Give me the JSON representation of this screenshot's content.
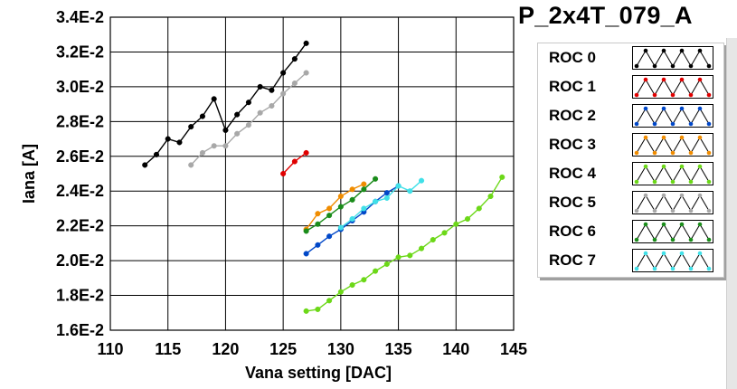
{
  "chart_data": {
    "type": "line",
    "title": "P_2x4T_079_A",
    "xlabel": "Vana setting [DAC]",
    "ylabel": "Iana [A]",
    "xlim": [
      110,
      145
    ],
    "ylim": [
      0.016,
      0.034
    ],
    "x_ticks": [
      110,
      115,
      120,
      125,
      130,
      135,
      140,
      145
    ],
    "x_tick_labels": [
      "110",
      "115",
      "120",
      "125",
      "130",
      "135",
      "140",
      "145"
    ],
    "y_ticks": [
      0.016,
      0.018,
      0.02,
      0.022,
      0.024,
      0.026,
      0.028,
      0.03,
      0.032,
      0.034
    ],
    "y_tick_labels": [
      "1.6E-2",
      "1.8E-2",
      "2.0E-2",
      "2.2E-2",
      "2.4E-2",
      "2.6E-2",
      "2.8E-2",
      "3.0E-2",
      "3.2E-2",
      "3.4E-2"
    ],
    "grid": true,
    "legend_position": "right",
    "series": [
      {
        "name": "ROC 0",
        "color": "#000000",
        "x": [
          113,
          114,
          115,
          116,
          117,
          118,
          119,
          120,
          121,
          122,
          123,
          124,
          125,
          126,
          127
        ],
        "y": [
          0.0255,
          0.0261,
          0.027,
          0.0268,
          0.0277,
          0.0283,
          0.0293,
          0.0275,
          0.0284,
          0.0291,
          0.03,
          0.0298,
          0.0308,
          0.0316,
          0.0325
        ]
      },
      {
        "name": "ROC 1",
        "color": "#e00000",
        "x": [
          125,
          126,
          127
        ],
        "y": [
          0.025,
          0.0257,
          0.0262
        ]
      },
      {
        "name": "ROC 2",
        "color": "#0047c8",
        "x": [
          127,
          128,
          129,
          130,
          131,
          132,
          133,
          134,
          135
        ],
        "y": [
          0.0204,
          0.0209,
          0.0214,
          0.0218,
          0.0223,
          0.0228,
          0.0234,
          0.0239,
          0.0243
        ]
      },
      {
        "name": "ROC 3",
        "color": "#f08c00",
        "x": [
          127,
          128,
          129,
          130,
          131,
          132
        ],
        "y": [
          0.0218,
          0.0227,
          0.023,
          0.0237,
          0.0241,
          0.0244
        ]
      },
      {
        "name": "ROC 4",
        "color": "#6cd818",
        "x": [
          127,
          128,
          129,
          130,
          131,
          132,
          133,
          134,
          135,
          136,
          137,
          138,
          139,
          140,
          141,
          142,
          143,
          144
        ],
        "y": [
          0.0171,
          0.0172,
          0.0177,
          0.0182,
          0.0186,
          0.0189,
          0.0194,
          0.0198,
          0.0202,
          0.0203,
          0.0207,
          0.0212,
          0.0216,
          0.0221,
          0.0224,
          0.023,
          0.0237,
          0.0248
        ]
      },
      {
        "name": "ROC 5",
        "color": "#a8a8a8",
        "x": [
          117,
          118,
          119,
          120,
          121,
          122,
          123,
          124,
          125,
          126,
          127
        ],
        "y": [
          0.0255,
          0.0262,
          0.0266,
          0.0266,
          0.0273,
          0.0278,
          0.0285,
          0.0289,
          0.0296,
          0.0302,
          0.0308
        ]
      },
      {
        "name": "ROC 6",
        "color": "#1a8c1a",
        "x": [
          127,
          128,
          129,
          130,
          131,
          132,
          133
        ],
        "y": [
          0.0217,
          0.0221,
          0.0226,
          0.0231,
          0.0235,
          0.0241,
          0.0247
        ]
      },
      {
        "name": "ROC 7",
        "color": "#40e0e8",
        "x": [
          130,
          131,
          132,
          133,
          134,
          135,
          136,
          137
        ],
        "y": [
          0.0219,
          0.0224,
          0.023,
          0.0234,
          0.0236,
          0.0243,
          0.024,
          0.0246
        ]
      }
    ]
  }
}
